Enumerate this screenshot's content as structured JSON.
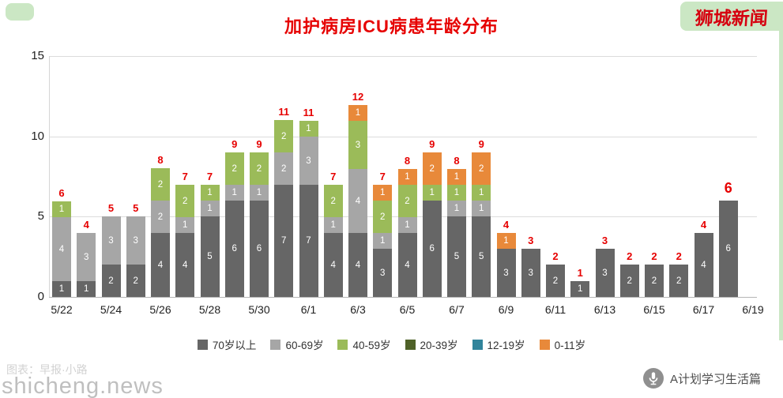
{
  "page": {
    "brand": "狮城新闻",
    "watermark": "shicheng.news",
    "credit": "图表：早报·小路",
    "footer_badge": "A计划学习生活篇"
  },
  "chart_data": {
    "type": "bar",
    "variant": "stacked",
    "title": "加护病房ICU病患年龄分布",
    "xlabel": "",
    "ylabel": "",
    "ylim": [
      0,
      15
    ],
    "yticks": [
      0,
      5,
      10,
      15
    ],
    "grid": true,
    "legend_position": "bottom",
    "total_label_color": "#e60000",
    "x_tick_labels": [
      "5/22",
      "5/24",
      "5/26",
      "5/28",
      "5/30",
      "6/1",
      "6/3",
      "6/5",
      "6/7",
      "6/9",
      "6/11",
      "6/13",
      "6/15",
      "6/17",
      "6/19"
    ],
    "categories": [
      "5/22",
      "5/23",
      "5/24",
      "5/25",
      "5/26",
      "5/27",
      "5/28",
      "5/29",
      "5/30",
      "5/31",
      "6/1",
      "6/2",
      "6/3",
      "6/4",
      "6/5",
      "6/6",
      "6/7",
      "6/8",
      "6/9",
      "6/10",
      "6/11",
      "6/12",
      "6/13",
      "6/14",
      "6/15",
      "6/16",
      "6/17",
      "6/18"
    ],
    "totals": [
      6,
      4,
      5,
      5,
      8,
      7,
      7,
      9,
      9,
      11,
      11,
      7,
      12,
      7,
      8,
      9,
      8,
      9,
      4,
      3,
      2,
      1,
      3,
      2,
      2,
      2,
      4,
      6
    ],
    "series": [
      {
        "name": "70岁以上",
        "color": "#666666",
        "values": [
          1,
          1,
          2,
          2,
          4,
          4,
          5,
          6,
          6,
          7,
          7,
          4,
          4,
          3,
          4,
          6,
          5,
          5,
          3,
          3,
          2,
          1,
          3,
          2,
          2,
          2,
          4,
          6
        ]
      },
      {
        "name": "60-69岁",
        "color": "#a6a6a6",
        "values": [
          4,
          3,
          3,
          3,
          2,
          1,
          1,
          1,
          1,
          2,
          3,
          1,
          4,
          1,
          1,
          0,
          1,
          1,
          0,
          0,
          0,
          0,
          0,
          0,
          0,
          0,
          0,
          0
        ]
      },
      {
        "name": "40-59岁",
        "color": "#9bbb59",
        "values": [
          1,
          0,
          0,
          0,
          2,
          2,
          1,
          2,
          2,
          2,
          1,
          2,
          3,
          2,
          2,
          1,
          1,
          1,
          0,
          0,
          0,
          0,
          0,
          0,
          0,
          0,
          0,
          0
        ]
      },
      {
        "name": "20-39岁",
        "color": "#4f6228",
        "values": [
          0,
          0,
          0,
          0,
          0,
          0,
          0,
          0,
          0,
          0,
          0,
          0,
          0,
          0,
          0,
          0,
          0,
          0,
          0,
          0,
          0,
          0,
          0,
          0,
          0,
          0,
          0,
          0
        ]
      },
      {
        "name": "12-19岁",
        "color": "#31849b",
        "values": [
          0,
          0,
          0,
          0,
          0,
          0,
          0,
          0,
          0,
          0,
          0,
          0,
          0,
          0,
          0,
          0,
          0,
          0,
          0,
          0,
          0,
          0,
          0,
          0,
          0,
          0,
          0,
          0
        ]
      },
      {
        "name": "0-11岁",
        "color": "#e8893a",
        "values": [
          0,
          0,
          0,
          0,
          0,
          0,
          0,
          0,
          0,
          0,
          0,
          0,
          1,
          1,
          1,
          2,
          1,
          2,
          1,
          0,
          0,
          0,
          0,
          0,
          0,
          0,
          0,
          0
        ]
      }
    ]
  }
}
